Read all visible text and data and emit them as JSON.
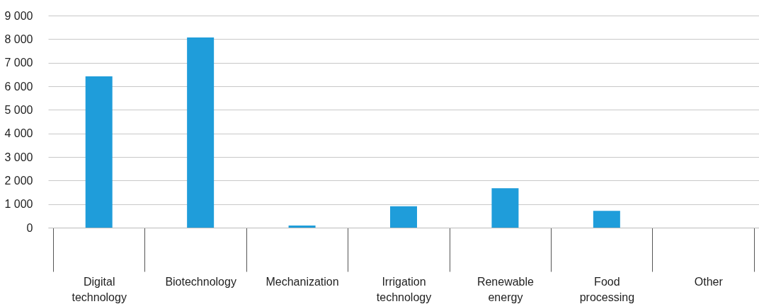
{
  "chart_data": {
    "type": "bar",
    "categories": [
      "Digital technology",
      "Biotechnology",
      "Mechanization",
      "Irrigation technology",
      "Renewable energy",
      "Food processing",
      "Other"
    ],
    "values": [
      6420,
      8070,
      90,
      910,
      1670,
      710,
      0
    ],
    "color": "#1f9dda",
    "ylim": [
      0,
      9000
    ],
    "yticks": [
      {
        "value": 0,
        "label": "0"
      },
      {
        "value": 1000,
        "label": "1 000"
      },
      {
        "value": 2000,
        "label": "2 000"
      },
      {
        "value": 3000,
        "label": "3 000"
      },
      {
        "value": 4000,
        "label": "4 000"
      },
      {
        "value": 5000,
        "label": "5 000"
      },
      {
        "value": 6000,
        "label": "6 000"
      },
      {
        "value": 7000,
        "label": "7 000"
      },
      {
        "value": 8000,
        "label": "8 000"
      },
      {
        "value": 9000,
        "label": "9 000"
      }
    ],
    "grid": "y"
  }
}
